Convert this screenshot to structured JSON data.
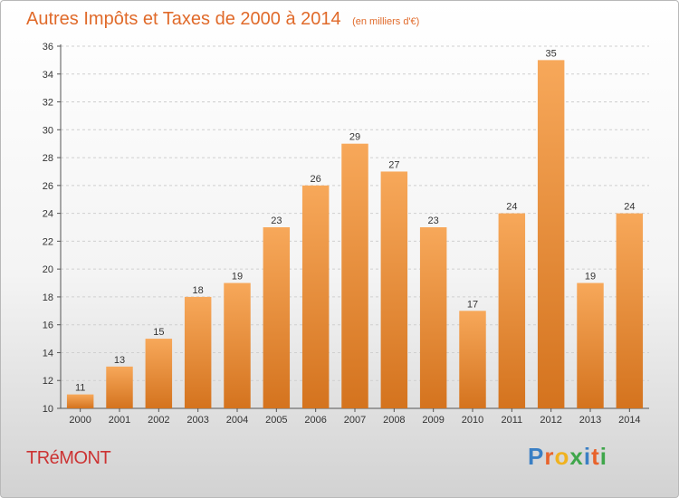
{
  "title": "Autres Impôts et Taxes de 2000 à 2014",
  "subtitle": "(en milliers d'€)",
  "commune": "TRéMONT",
  "brand": {
    "letters": [
      "P",
      "r",
      "o",
      "x",
      "i",
      "t",
      "i"
    ],
    "colors": [
      "#3a7fc4",
      "#e8632b",
      "#f0b21f",
      "#3fa64b",
      "#3a7fc4",
      "#e8632b",
      "#3fa64b"
    ]
  },
  "colors": {
    "bar_light": "#f7a85a",
    "bar_dark": "#d4731e",
    "accent": "#e06a2a"
  },
  "chart_data": {
    "type": "bar",
    "categories": [
      "2000",
      "2001",
      "2002",
      "2003",
      "2004",
      "2005",
      "2006",
      "2007",
      "2008",
      "2009",
      "2010",
      "2011",
      "2012",
      "2013",
      "2014"
    ],
    "values": [
      11,
      13,
      15,
      18,
      19,
      23,
      26,
      29,
      27,
      23,
      17,
      24,
      35,
      19,
      24
    ],
    "ylim": [
      10,
      36
    ],
    "yticks": [
      "10",
      "12",
      "14",
      "16",
      "18",
      "20",
      "22",
      "24",
      "26",
      "28",
      "30",
      "32",
      "34",
      "36"
    ],
    "grid": true,
    "xlabel": "",
    "ylabel": ""
  }
}
